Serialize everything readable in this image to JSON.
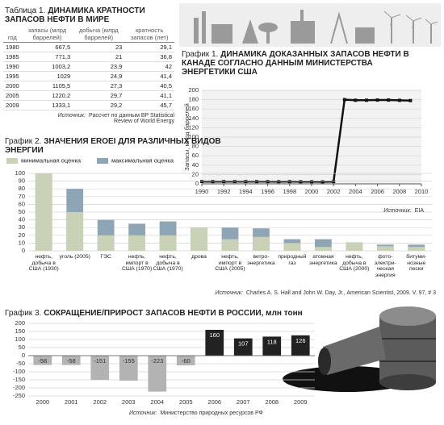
{
  "table": {
    "title_prefix": "Таблица 1.",
    "title": "ДИНАМИКА КРАТНОСТИ ЗАПАСОВ НЕФТИ В МИРЕ",
    "columns": [
      "год",
      "запасы (млрд баррелей)",
      "добыча (млрд баррелей)",
      "кратность запасов (лет)"
    ],
    "rows": [
      [
        "1980",
        "667,5",
        "23",
        "29,1"
      ],
      [
        "1985",
        "771,3",
        "21",
        "36,8"
      ],
      [
        "1990",
        "1003,2",
        "23,9",
        "42"
      ],
      [
        "1995",
        "1029",
        "24,9",
        "41,4"
      ],
      [
        "2000",
        "1105,5",
        "27,3",
        "40,5"
      ],
      [
        "2005",
        "1220,2",
        "29,7",
        "41,1"
      ],
      [
        "2009",
        "1333,1",
        "29,2",
        "45,7"
      ]
    ],
    "source_label": "Источник:",
    "source": "Рассчет по данным BP Statistical Review of World Energy"
  },
  "chart_data": [
    {
      "type": "line",
      "title_prefix": "График 1.",
      "title": "ДИНАМИКА ДОКАЗАННЫХ ЗАПАСОВ НЕФТИ В КАНАДЕ СОГЛАСНО ДАННЫМ МИНИСТЕРСТВА ЭНЕРГЕТИКИ США",
      "y_label": "Запасы, млрд баррелей",
      "x": [
        1990,
        1991,
        1992,
        1993,
        1994,
        1995,
        1996,
        1997,
        1998,
        1999,
        2000,
        2001,
        2002,
        2003,
        2004,
        2005,
        2006,
        2007,
        2008,
        2009
      ],
      "values": [
        5,
        5,
        5,
        5,
        5,
        5,
        4.9,
        4.8,
        4.9,
        4.7,
        4.7,
        4.5,
        4.9,
        180,
        178.8,
        178.8,
        179.2,
        179.2,
        178.6,
        178.1
      ],
      "color": "#111111",
      "xlim": [
        1990,
        2010
      ],
      "xticks": [
        1990,
        1992,
        1994,
        1996,
        1998,
        2000,
        2002,
        2004,
        2006,
        2008,
        2010
      ],
      "ylim": [
        0,
        200
      ],
      "yticks": [
        0,
        20,
        40,
        60,
        80,
        100,
        120,
        140,
        160,
        180,
        200
      ],
      "grid": true,
      "source_label": "Источник:",
      "source": "EIA"
    },
    {
      "type": "bar",
      "title_prefix": "График 2.",
      "title": "ЗНАЧЕНИЯ EROEI ДЛЯ РАЗЛИЧНЫХ ВИДОВ ЭНЕРГИИ",
      "categories": [
        "нефть, добыча в США (1930)",
        "уголь (2005)",
        "ГЭС",
        "нефть, импорт в США (1970)",
        "нефть, добыча в США (1970)",
        "дрова",
        "нефть, импорт в США (2005)",
        "ветро-энергетика",
        "природный газ",
        "атомная энергетика",
        "нефть, добыча в США (2000)",
        "фото-электри-ческая энергия",
        "битуми-нозные пески"
      ],
      "series": [
        {
          "name": "минимальная оценка",
          "color": "#c9d1b6",
          "values": [
            100,
            50,
            20,
            20,
            20,
            30,
            15,
            18,
            10,
            5,
            11,
            6,
            5
          ]
        },
        {
          "name": "максимальная оценка",
          "color": "#8ea5b6",
          "values": [
            100,
            80,
            40,
            35,
            38,
            30,
            30,
            29,
            15,
            15,
            11,
            8,
            8
          ]
        }
      ],
      "ylim": [
        0,
        100
      ],
      "yticks": [
        0,
        10,
        20,
        30,
        40,
        50,
        60,
        70,
        80,
        90,
        100
      ],
      "grid": true,
      "source_label": "Источник:",
      "source": "Charles A. S. Hall and John W. Day, Jr., American Scientist, 2009. V. 97, # 3"
    },
    {
      "type": "bar",
      "title_prefix": "График 3.",
      "title": "СОКРАЩЕНИЕ/ПРИРОСТ ЗАПАСОВ НЕФТИ В РОССИИ, млн тонн",
      "categories": [
        "2000",
        "2001",
        "2002",
        "2003",
        "2004",
        "2005",
        "2006",
        "2007",
        "2008",
        "2009"
      ],
      "values": [
        -58,
        -58,
        -151,
        -155,
        -223,
        -60,
        160,
        107,
        118,
        126
      ],
      "positive_color": "#222222",
      "negative_color": "#b3b3b3",
      "ylim": [
        -250,
        200
      ],
      "yticks": [
        -250,
        -200,
        -150,
        -100,
        -50,
        0,
        50,
        100,
        150,
        200
      ],
      "grid": true,
      "source_label": "Источник:",
      "source": "Министерство природных ресурсов РФ"
    }
  ]
}
